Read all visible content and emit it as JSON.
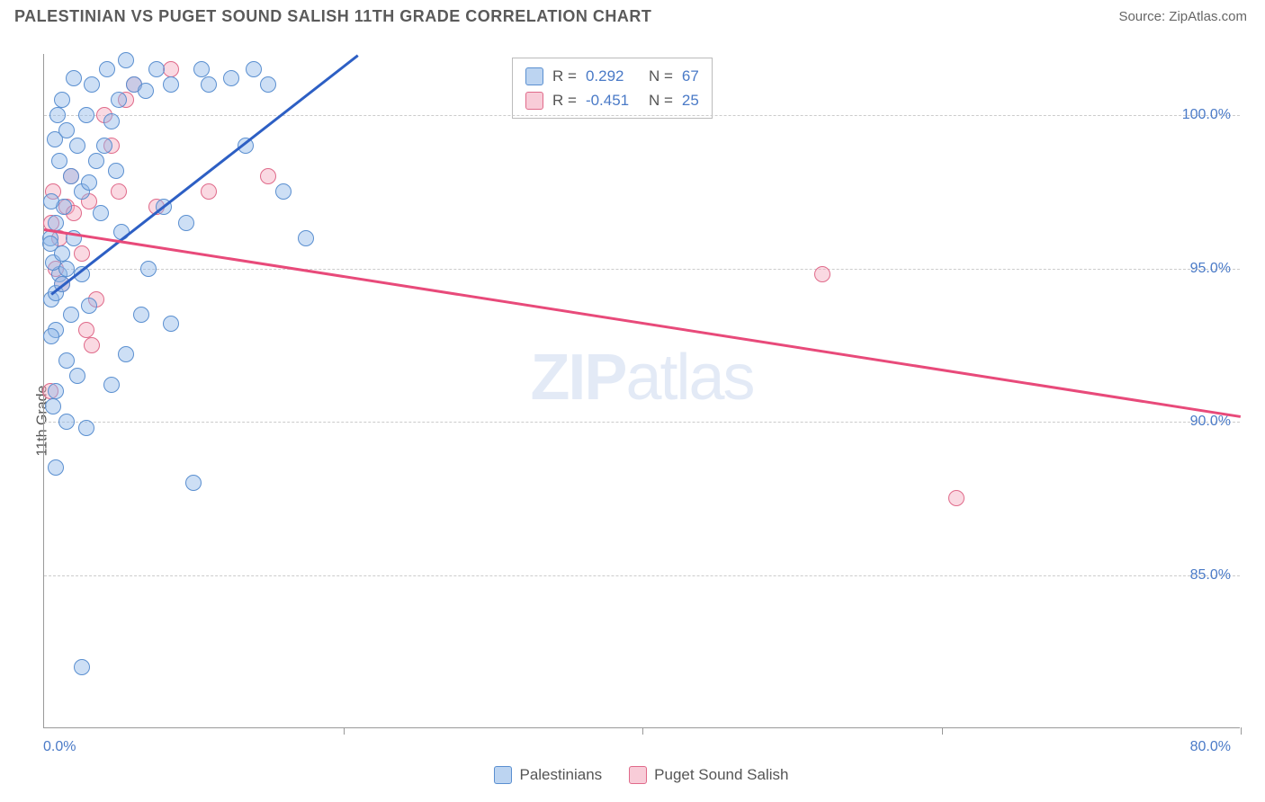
{
  "header": {
    "title": "PALESTINIAN VS PUGET SOUND SALISH 11TH GRADE CORRELATION CHART",
    "source": "Source: ZipAtlas.com"
  },
  "chart": {
    "type": "scatter",
    "ylabel": "11th Grade",
    "watermark_bold": "ZIP",
    "watermark_rest": "atlas",
    "xlim": [
      0,
      80
    ],
    "ylim": [
      80,
      102
    ],
    "x_ticks": [
      0,
      20,
      40,
      60,
      80
    ],
    "x_tick_labels": {
      "0": "0.0%",
      "80": "80.0%"
    },
    "y_gridlines": [
      85,
      90,
      95,
      100
    ],
    "y_tick_labels": {
      "85": "85.0%",
      "90": "90.0%",
      "95": "95.0%",
      "100": "100.0%"
    },
    "background_color": "#ffffff",
    "grid_color": "#cccccc",
    "axis_color": "#999999",
    "tick_label_color": "#4a7ac7",
    "axis_label_color": "#555555",
    "series": {
      "blue": {
        "label": "Palestinians",
        "fill": "rgba(144,184,232,0.45)",
        "stroke": "#5a8fd0",
        "line_color": "#2d5fc4",
        "r": 0.292,
        "n": 67,
        "trend": {
          "x1": 0.5,
          "y1": 94.2,
          "x2": 21,
          "y2": 102
        },
        "points": [
          [
            0.5,
            94.0
          ],
          [
            0.8,
            94.2
          ],
          [
            1.0,
            94.8
          ],
          [
            0.6,
            95.2
          ],
          [
            1.2,
            95.5
          ],
          [
            0.4,
            96.0
          ],
          [
            1.5,
            95.0
          ],
          [
            0.8,
            96.5
          ],
          [
            2.0,
            96.0
          ],
          [
            1.3,
            97.0
          ],
          [
            0.5,
            97.2
          ],
          [
            2.5,
            97.5
          ],
          [
            1.8,
            98.0
          ],
          [
            3.0,
            97.8
          ],
          [
            1.0,
            98.5
          ],
          [
            2.2,
            99.0
          ],
          [
            3.5,
            98.5
          ],
          [
            0.7,
            99.2
          ],
          [
            4.0,
            99.0
          ],
          [
            1.5,
            99.5
          ],
          [
            2.8,
            100.0
          ],
          [
            4.5,
            99.8
          ],
          [
            1.2,
            100.5
          ],
          [
            3.2,
            101.0
          ],
          [
            5.0,
            100.5
          ],
          [
            2.0,
            101.2
          ],
          [
            6.0,
            101.0
          ],
          [
            4.2,
            101.5
          ],
          [
            7.5,
            101.5
          ],
          [
            5.5,
            101.8
          ],
          [
            8.5,
            101.0
          ],
          [
            6.8,
            100.8
          ],
          [
            4.8,
            98.2
          ],
          [
            3.8,
            96.8
          ],
          [
            5.2,
            96.2
          ],
          [
            2.5,
            94.8
          ],
          [
            1.8,
            93.5
          ],
          [
            0.8,
            93.0
          ],
          [
            1.5,
            92.0
          ],
          [
            5.5,
            92.2
          ],
          [
            0.5,
            92.8
          ],
          [
            3.0,
            93.8
          ],
          [
            2.2,
            91.5
          ],
          [
            0.8,
            91.0
          ],
          [
            4.5,
            91.2
          ],
          [
            1.5,
            90.0
          ],
          [
            2.8,
            89.8
          ],
          [
            0.6,
            90.5
          ],
          [
            6.5,
            93.5
          ],
          [
            7.0,
            95.0
          ],
          [
            8.0,
            97.0
          ],
          [
            9.5,
            96.5
          ],
          [
            8.5,
            93.2
          ],
          [
            10.5,
            101.5
          ],
          [
            11.0,
            101.0
          ],
          [
            12.5,
            101.2
          ],
          [
            14.0,
            101.5
          ],
          [
            15.0,
            101.0
          ],
          [
            13.5,
            99.0
          ],
          [
            16.0,
            97.5
          ],
          [
            17.5,
            96.0
          ],
          [
            10.0,
            88.0
          ],
          [
            2.5,
            82.0
          ],
          [
            0.8,
            88.5
          ],
          [
            1.2,
            94.5
          ],
          [
            0.4,
            95.8
          ],
          [
            0.9,
            100.0
          ]
        ]
      },
      "pink": {
        "label": "Puget Sound Salish",
        "fill": "rgba(244,170,190,0.45)",
        "stroke": "#e06a8a",
        "line_color": "#e84a7a",
        "r": -0.451,
        "n": 25,
        "trend": {
          "x1": 0,
          "y1": 96.3,
          "x2": 80,
          "y2": 90.2
        },
        "points": [
          [
            0.5,
            96.5
          ],
          [
            1.0,
            96.0
          ],
          [
            1.5,
            97.0
          ],
          [
            0.8,
            95.0
          ],
          [
            2.0,
            96.8
          ],
          [
            0.6,
            97.5
          ],
          [
            2.5,
            95.5
          ],
          [
            1.2,
            94.5
          ],
          [
            3.0,
            97.2
          ],
          [
            1.8,
            98.0
          ],
          [
            3.5,
            94.0
          ],
          [
            0.4,
            91.0
          ],
          [
            4.5,
            99.0
          ],
          [
            5.0,
            97.5
          ],
          [
            2.8,
            93.0
          ],
          [
            6.0,
            101.0
          ],
          [
            5.5,
            100.5
          ],
          [
            3.2,
            92.5
          ],
          [
            7.5,
            97.0
          ],
          [
            8.5,
            101.5
          ],
          [
            4.0,
            100.0
          ],
          [
            11.0,
            97.5
          ],
          [
            15.0,
            98.0
          ],
          [
            52.0,
            94.8
          ],
          [
            61.0,
            87.5
          ]
        ]
      }
    },
    "legend_top": {
      "r_label": "R =",
      "n_label": "N ="
    },
    "marker_radius": 9,
    "line_width": 2.5,
    "title_fontsize": 18,
    "label_fontsize": 16
  }
}
